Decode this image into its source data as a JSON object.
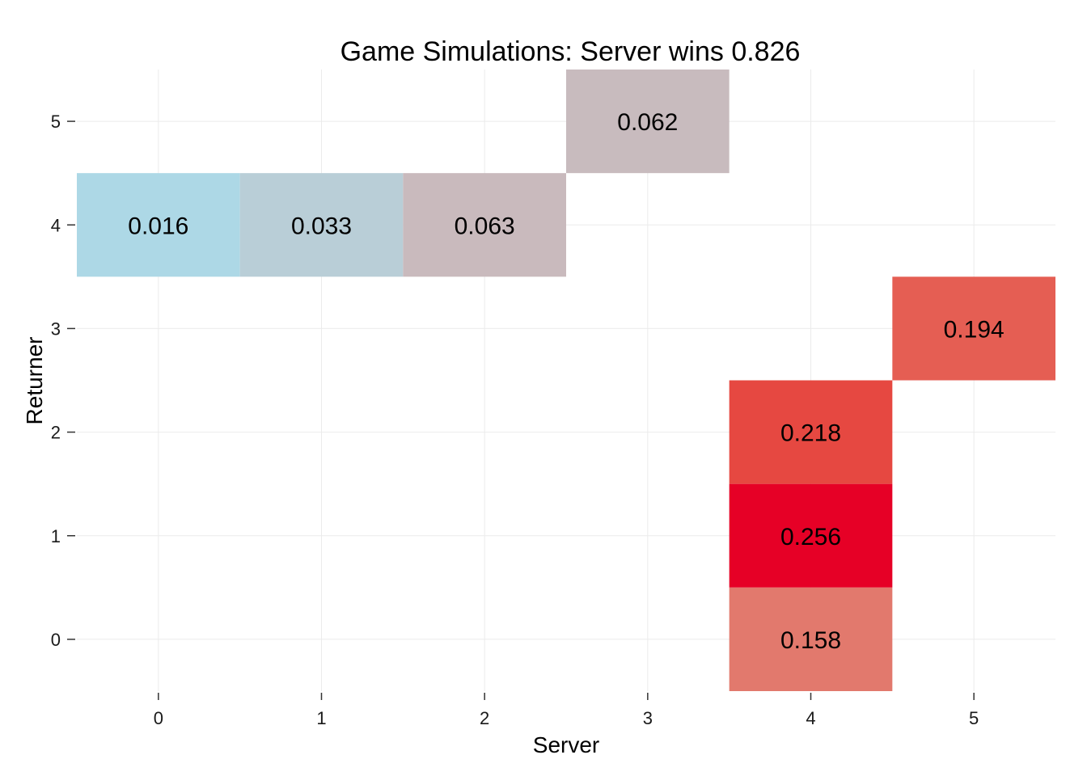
{
  "chart_data": {
    "type": "heatmap",
    "title": "Game Simulations: Server wins 0.826",
    "xlabel": "Server",
    "ylabel": "Returner",
    "x_ticks": [
      0,
      1,
      2,
      3,
      4,
      5
    ],
    "y_ticks": [
      0,
      1,
      2,
      3,
      4,
      5
    ],
    "xlim": [
      -0.5,
      5.5
    ],
    "ylim": [
      -0.5,
      5.5
    ],
    "grid": true,
    "legend": "none",
    "color_scale": {
      "low": "#add8e6",
      "high": "#e60026"
    },
    "cells": [
      {
        "server": 0,
        "returner": 4,
        "value": 0.016,
        "label": "0.016",
        "color": "#add8e6"
      },
      {
        "server": 1,
        "returner": 4,
        "value": 0.033,
        "label": "0.033",
        "color": "#b9ced7"
      },
      {
        "server": 2,
        "returner": 4,
        "value": 0.063,
        "label": "0.063",
        "color": "#c9babd"
      },
      {
        "server": 3,
        "returner": 5,
        "value": 0.062,
        "label": "0.062",
        "color": "#c8bbbe"
      },
      {
        "server": 5,
        "returner": 3,
        "value": 0.194,
        "label": "0.194",
        "color": "#e55e53"
      },
      {
        "server": 4,
        "returner": 2,
        "value": 0.218,
        "label": "0.218",
        "color": "#e64841"
      },
      {
        "server": 4,
        "returner": 1,
        "value": 0.256,
        "label": "0.256",
        "color": "#e60026"
      },
      {
        "server": 4,
        "returner": 0,
        "value": 0.158,
        "label": "0.158",
        "color": "#e2796d"
      }
    ]
  }
}
